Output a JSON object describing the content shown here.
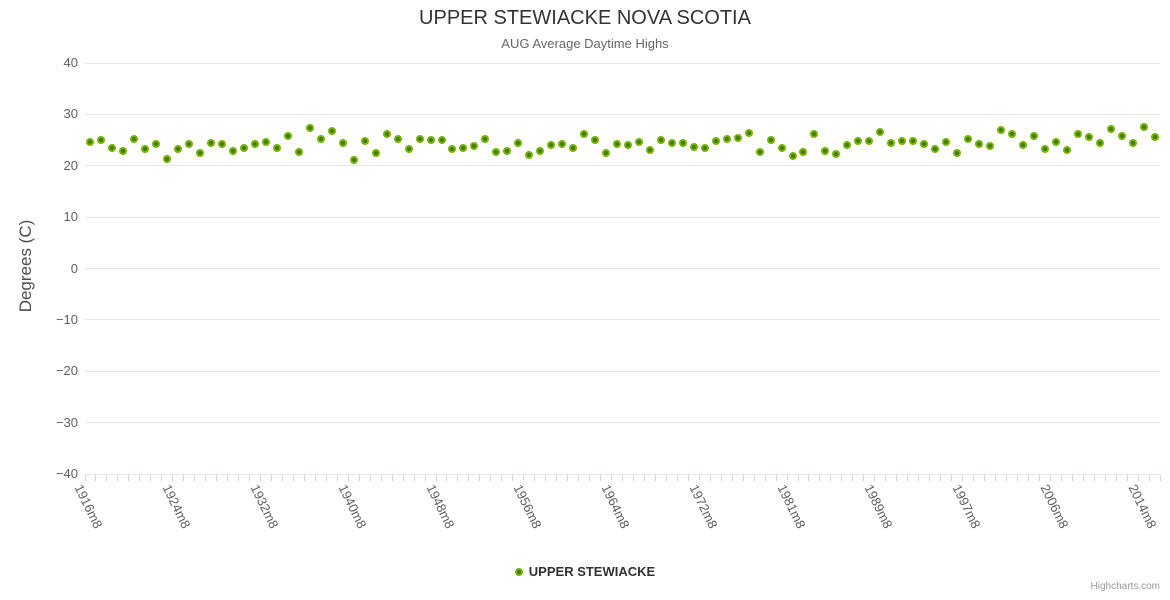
{
  "credits": {
    "label": "Highcharts.com"
  },
  "legend": {
    "series_label": "UPPER STEWIACKE"
  },
  "chart_data": {
    "type": "scatter",
    "title": "UPPER STEWIACKE NOVA SCOTIA",
    "subtitle": "AUG Average Daytime Highs",
    "xlabel": "",
    "ylabel": "Degrees (C)",
    "ylim": [
      -40,
      40
    ],
    "ytick_values": [
      40,
      30,
      20,
      10,
      0,
      -10,
      -20,
      -30,
      -40
    ],
    "ytick_labels": [
      "40",
      "30",
      "20",
      "10",
      "0",
      "−10",
      "−20",
      "−30",
      "−40"
    ],
    "x_label_step": 8,
    "grid": "horizontal-only",
    "legend_position": "bottom-center",
    "marker_color": "#77b300",
    "marker_core_color": "#3e7c00",
    "categories": [
      "1916m8",
      "1917m8",
      "1918m8",
      "1919m8",
      "1920m8",
      "1921m8",
      "1922m8",
      "1923m8",
      "1924m8",
      "1925m8",
      "1926m8",
      "1927m8",
      "1928m8",
      "1929m8",
      "1930m8",
      "1931m8",
      "1932m8",
      "1933m8",
      "1934m8",
      "1935m8",
      "1936m8",
      "1937m8",
      "1938m8",
      "1939m8",
      "1940m8",
      "1941m8",
      "1942m8",
      "1943m8",
      "1944m8",
      "1945m8",
      "1946m8",
      "1947m8",
      "1948m8",
      "1949m8",
      "1950m8",
      "1951m8",
      "1952m8",
      "1953m8",
      "1954m8",
      "1955m8",
      "1956m8",
      "1957m8",
      "1958m8",
      "1959m8",
      "1960m8",
      "1961m8",
      "1962m8",
      "1963m8",
      "1964m8",
      "1965m8",
      "1966m8",
      "1967m8",
      "1968m8",
      "1969m8",
      "1970m8",
      "1971m8",
      "1972m8",
      "1973m8",
      "1974m8",
      "1975m8",
      "1977m8",
      "1978m8",
      "1979m8",
      "1980m8",
      "1981m8",
      "1982m8",
      "1983m8",
      "1984m8",
      "1985m8",
      "1986m8",
      "1987m8",
      "1988m8",
      "1989m8",
      "1990m8",
      "1991m8",
      "1992m8",
      "1993m8",
      "1994m8",
      "1995m8",
      "1996m8",
      "1997m8",
      "1998m8",
      "1999m8",
      "2000m8",
      "2002m8",
      "2003m8",
      "2004m8",
      "2005m8",
      "2006m8",
      "2007m8",
      "2008m8",
      "2009m8",
      "2010m8",
      "2011m8",
      "2012m8",
      "2013m8",
      "2014m8",
      "2015m8"
    ],
    "series": [
      {
        "name": "UPPER STEWIACKE",
        "values": [
          24.7,
          25.0,
          23.4,
          22.9,
          25.3,
          23.3,
          24.3,
          21.4,
          23.3,
          24.3,
          22.5,
          24.4,
          24.2,
          22.9,
          23.5,
          24.3,
          24.6,
          23.4,
          25.7,
          22.7,
          27.4,
          25.2,
          26.8,
          24.4,
          21.2,
          24.8,
          22.5,
          26.2,
          25.3,
          23.2,
          25.2,
          25.0,
          25.0,
          23.3,
          23.5,
          23.9,
          25.3,
          22.6,
          22.8,
          24.4,
          22.0,
          22.9,
          24.0,
          24.3,
          23.4,
          26.1,
          25.1,
          22.5,
          24.2,
          24.1,
          24.6,
          23.0,
          25.1,
          24.4,
          24.4,
          23.6,
          23.4,
          24.8,
          25.2,
          25.4,
          26.3,
          22.7,
          25.0,
          23.4,
          21.9,
          22.7,
          26.1,
          22.8,
          22.2,
          24.0,
          24.8,
          24.8,
          26.5,
          24.5,
          24.8,
          24.9,
          24.3,
          23.3,
          24.7,
          22.4,
          25.2,
          24.3,
          23.8,
          27.0,
          26.1,
          24.0,
          25.7,
          23.2,
          24.6,
          23.1,
          26.2,
          25.5,
          24.4,
          27.1,
          25.7,
          24.4,
          27.6,
          25.6
        ]
      }
    ]
  }
}
